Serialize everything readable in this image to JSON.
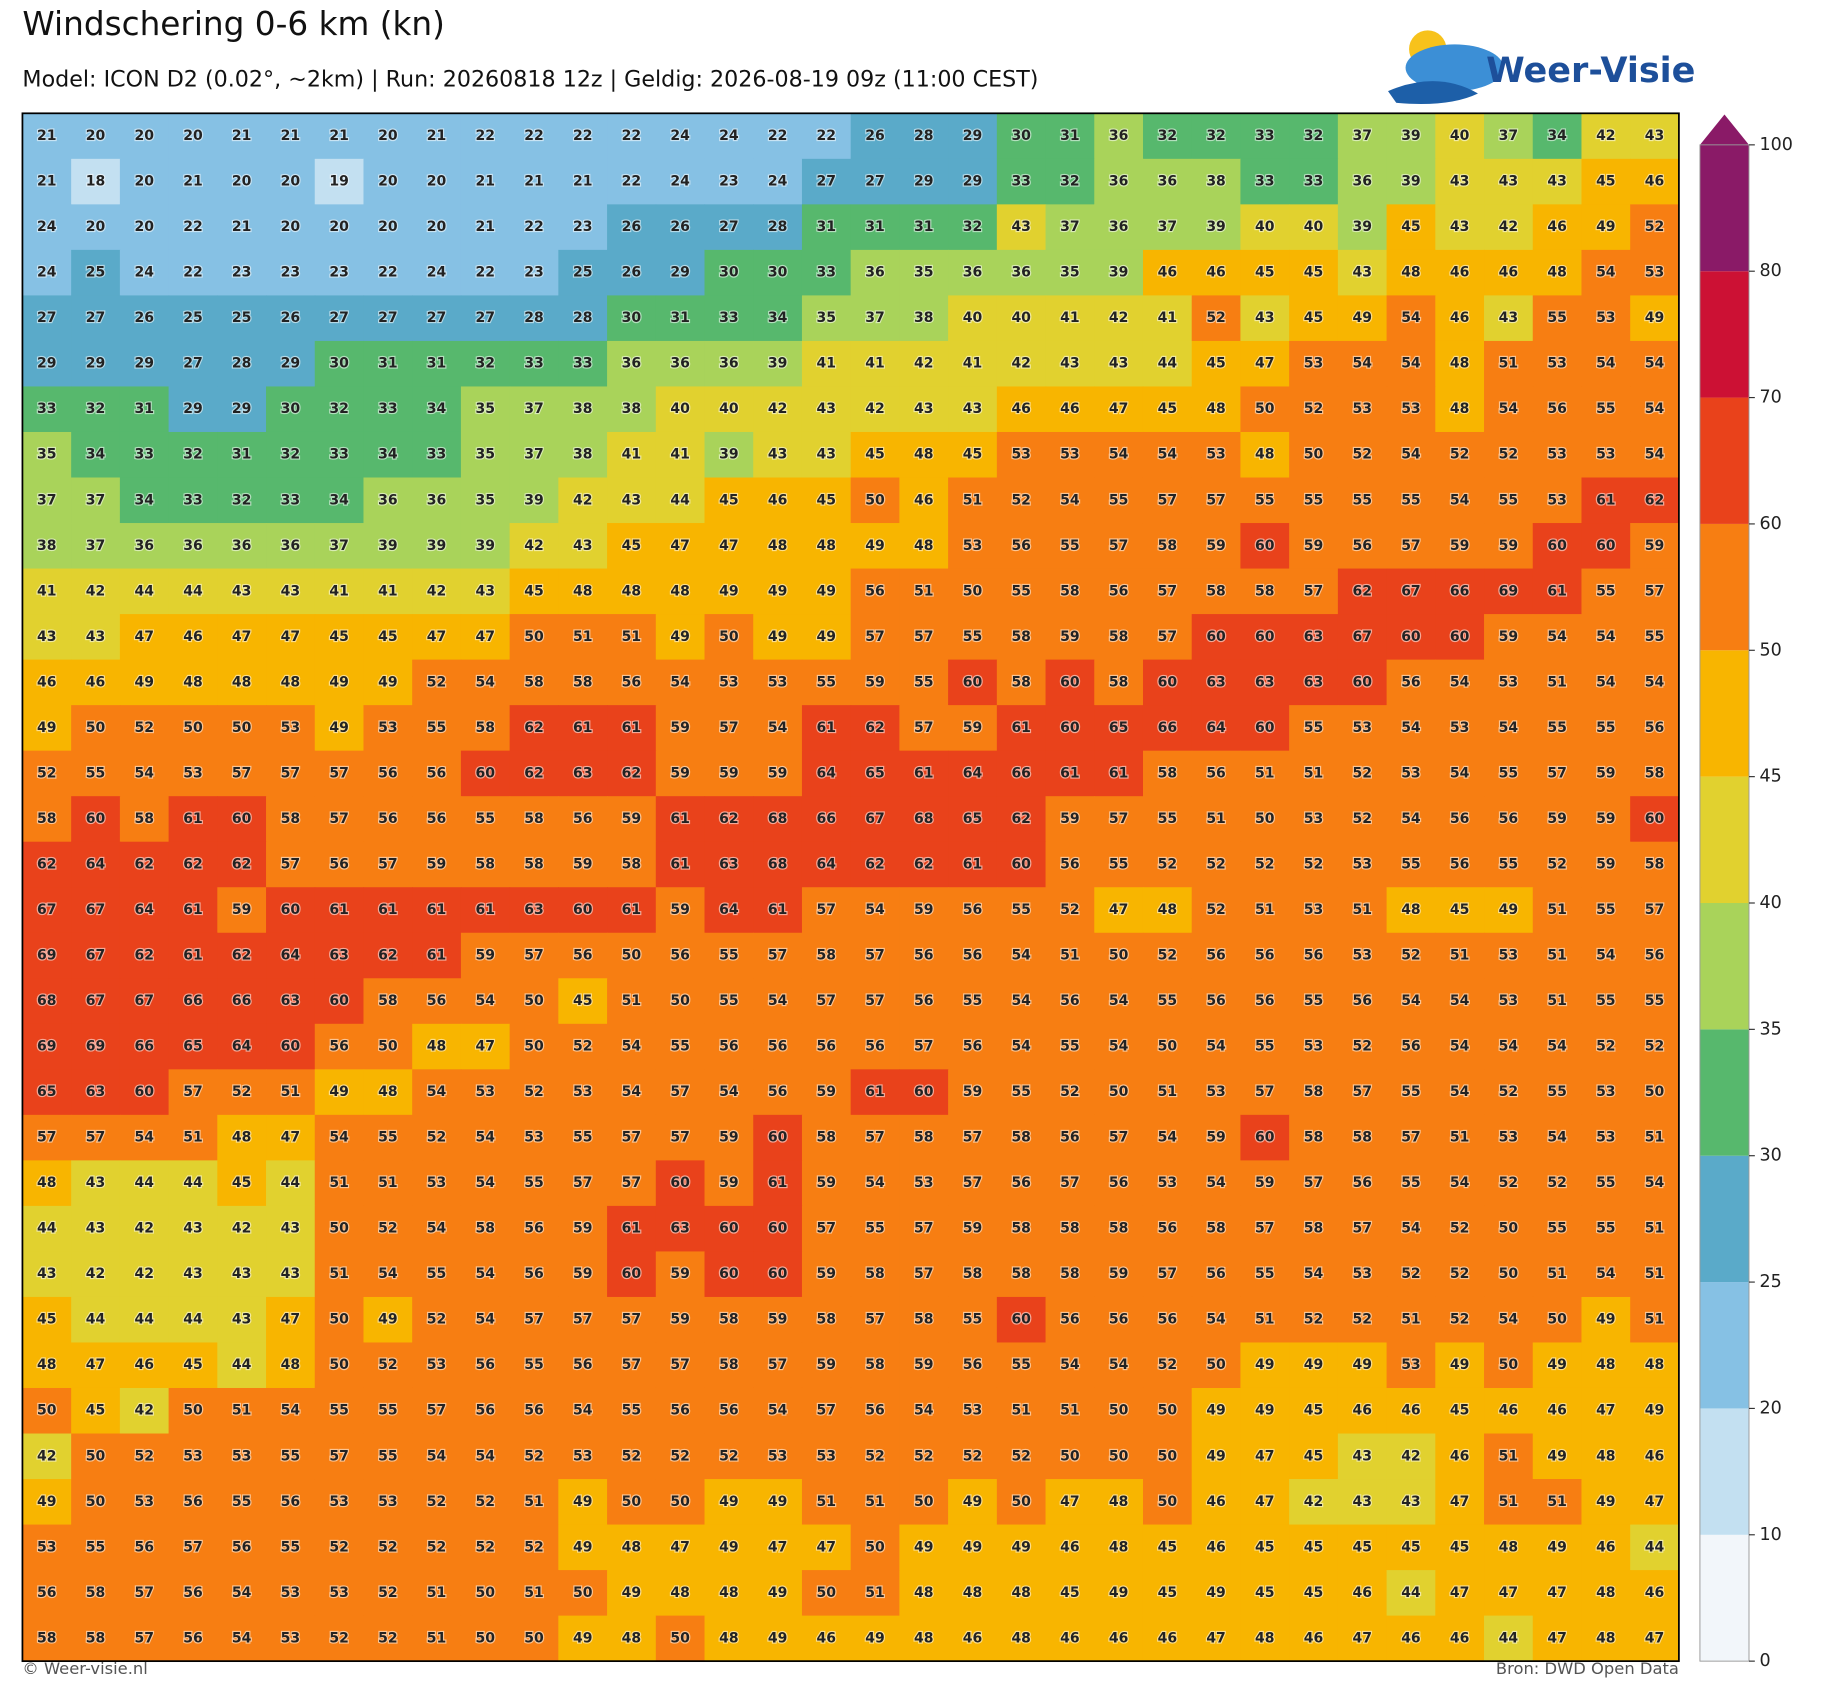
{
  "header": {
    "title": "Windschering 0-6 km (kn)",
    "subtitle": "Model: ICON D2 (0.02°, ~2km)  |  Run: 20260818 12z  |  Geldig: 2026-08-19 09z (11:00 CEST)",
    "logo": "Weer-Visie"
  },
  "chart_data": {
    "type": "heatmap",
    "values": [
      [
        21,
        20,
        20,
        20,
        21,
        21,
        21,
        20,
        21,
        22,
        22,
        22,
        22,
        24,
        24,
        22,
        22,
        26,
        28,
        29,
        30,
        31,
        36,
        32,
        32,
        33,
        32,
        37,
        39,
        40,
        37,
        34,
        42,
        43
      ],
      [
        21,
        18,
        20,
        21,
        20,
        20,
        19,
        20,
        20,
        21,
        21,
        21,
        22,
        24,
        23,
        24,
        27,
        27,
        29,
        29,
        33,
        32,
        36,
        36,
        38,
        33,
        33,
        36,
        39,
        43,
        43,
        43,
        45,
        46
      ],
      [
        24,
        20,
        20,
        22,
        21,
        20,
        20,
        20,
        20,
        21,
        22,
        23,
        26,
        26,
        27,
        28,
        31,
        31,
        31,
        32,
        43,
        37,
        36,
        37,
        39,
        40,
        40,
        39,
        45,
        43,
        42,
        46,
        49,
        52
      ],
      [
        24,
        25,
        24,
        22,
        23,
        23,
        23,
        22,
        24,
        22,
        23,
        25,
        26,
        29,
        30,
        30,
        33,
        36,
        35,
        36,
        36,
        35,
        39,
        46,
        46,
        45,
        45,
        43,
        48,
        46,
        46,
        48,
        54,
        53
      ],
      [
        27,
        27,
        26,
        25,
        25,
        26,
        27,
        27,
        27,
        27,
        28,
        28,
        30,
        31,
        33,
        34,
        35,
        37,
        38,
        40,
        40,
        41,
        42,
        41,
        52,
        43,
        45,
        49,
        54,
        46,
        43,
        55,
        53,
        49
      ],
      [
        29,
        29,
        29,
        27,
        28,
        29,
        30,
        31,
        31,
        32,
        33,
        33,
        36,
        36,
        36,
        39,
        41,
        41,
        42,
        41,
        42,
        43,
        43,
        44,
        45,
        47,
        53,
        54,
        54,
        48,
        51,
        53,
        54,
        54
      ],
      [
        33,
        32,
        31,
        29,
        29,
        30,
        32,
        33,
        34,
        35,
        37,
        38,
        38,
        40,
        40,
        42,
        43,
        42,
        43,
        43,
        46,
        46,
        47,
        45,
        48,
        50,
        52,
        53,
        53,
        48,
        54,
        56,
        55,
        54
      ],
      [
        35,
        34,
        33,
        32,
        31,
        32,
        33,
        34,
        33,
        35,
        37,
        38,
        41,
        41,
        39,
        43,
        43,
        45,
        48,
        45,
        53,
        53,
        54,
        54,
        53,
        48,
        50,
        52,
        54,
        52,
        52,
        53,
        53,
        54
      ],
      [
        37,
        37,
        34,
        33,
        32,
        33,
        34,
        36,
        36,
        35,
        39,
        42,
        43,
        44,
        45,
        46,
        45,
        50,
        46,
        51,
        52,
        54,
        55,
        57,
        57,
        55,
        55,
        55,
        55,
        54,
        55,
        53,
        61,
        62
      ],
      [
        38,
        37,
        36,
        36,
        36,
        36,
        37,
        39,
        39,
        39,
        42,
        43,
        45,
        47,
        47,
        48,
        48,
        49,
        48,
        53,
        56,
        55,
        57,
        58,
        59,
        60,
        59,
        56,
        57,
        59,
        59,
        60,
        60,
        59
      ],
      [
        41,
        42,
        44,
        44,
        43,
        43,
        41,
        41,
        42,
        43,
        45,
        48,
        48,
        48,
        49,
        49,
        49,
        56,
        51,
        50,
        55,
        58,
        56,
        57,
        58,
        58,
        57,
        62,
        67,
        66,
        69,
        61,
        55,
        57
      ],
      [
        43,
        43,
        47,
        46,
        47,
        47,
        45,
        45,
        47,
        47,
        50,
        51,
        51,
        49,
        50,
        49,
        49,
        57,
        57,
        55,
        58,
        59,
        58,
        57,
        60,
        60,
        63,
        67,
        60,
        60,
        59,
        54,
        54,
        55
      ],
      [
        46,
        46,
        49,
        48,
        48,
        48,
        49,
        49,
        52,
        54,
        58,
        58,
        56,
        54,
        53,
        53,
        55,
        59,
        55,
        60,
        58,
        60,
        58,
        60,
        63,
        63,
        63,
        60,
        56,
        54,
        53,
        51,
        54,
        54
      ],
      [
        49,
        50,
        52,
        50,
        50,
        53,
        49,
        53,
        55,
        58,
        62,
        61,
        61,
        59,
        57,
        54,
        61,
        62,
        57,
        59,
        61,
        60,
        65,
        66,
        64,
        60,
        55,
        53,
        54,
        53,
        54,
        55,
        55,
        56
      ],
      [
        52,
        55,
        54,
        53,
        57,
        57,
        57,
        56,
        56,
        60,
        62,
        63,
        62,
        59,
        59,
        59,
        64,
        65,
        61,
        64,
        66,
        61,
        61,
        58,
        56,
        51,
        51,
        52,
        53,
        54,
        55,
        57,
        59,
        58
      ],
      [
        58,
        60,
        58,
        61,
        60,
        58,
        57,
        56,
        56,
        55,
        58,
        56,
        59,
        61,
        62,
        68,
        66,
        67,
        68,
        65,
        62,
        59,
        57,
        55,
        51,
        50,
        53,
        52,
        54,
        56,
        56,
        59,
        59,
        60
      ],
      [
        62,
        64,
        62,
        62,
        62,
        57,
        56,
        57,
        59,
        58,
        58,
        59,
        58,
        61,
        63,
        68,
        64,
        62,
        62,
        61,
        60,
        56,
        55,
        52,
        52,
        52,
        52,
        53,
        55,
        56,
        55,
        52,
        59,
        58
      ],
      [
        67,
        67,
        64,
        61,
        59,
        60,
        61,
        61,
        61,
        61,
        63,
        60,
        61,
        59,
        64,
        61,
        57,
        54,
        59,
        56,
        55,
        52,
        47,
        48,
        52,
        51,
        53,
        51,
        48,
        45,
        49,
        51,
        55,
        57
      ],
      [
        69,
        67,
        62,
        61,
        62,
        64,
        63,
        62,
        61,
        59,
        57,
        56,
        50,
        56,
        55,
        57,
        58,
        57,
        56,
        56,
        54,
        51,
        50,
        52,
        56,
        56,
        56,
        53,
        52,
        51,
        53,
        51,
        54,
        56
      ],
      [
        68,
        67,
        67,
        66,
        66,
        63,
        60,
        58,
        56,
        54,
        50,
        45,
        51,
        50,
        55,
        54,
        57,
        57,
        56,
        55,
        54,
        56,
        54,
        55,
        56,
        56,
        55,
        56,
        54,
        54,
        53,
        51,
        55,
        55
      ],
      [
        69,
        69,
        66,
        65,
        64,
        60,
        56,
        50,
        48,
        47,
        50,
        52,
        54,
        55,
        56,
        56,
        56,
        56,
        57,
        56,
        54,
        55,
        54,
        50,
        54,
        55,
        53,
        52,
        56,
        54,
        54,
        54,
        52,
        52
      ],
      [
        65,
        63,
        60,
        57,
        52,
        51,
        49,
        48,
        54,
        53,
        52,
        53,
        54,
        57,
        54,
        56,
        59,
        61,
        60,
        59,
        55,
        52,
        50,
        51,
        53,
        57,
        58,
        57,
        55,
        54,
        52,
        55,
        53,
        50
      ],
      [
        57,
        57,
        54,
        51,
        48,
        47,
        54,
        55,
        52,
        54,
        53,
        55,
        57,
        57,
        59,
        60,
        58,
        57,
        58,
        57,
        58,
        56,
        57,
        54,
        59,
        60,
        58,
        58,
        57,
        51,
        53,
        54,
        53,
        51
      ],
      [
        48,
        43,
        44,
        44,
        45,
        44,
        51,
        51,
        53,
        54,
        55,
        57,
        57,
        60,
        59,
        61,
        59,
        54,
        53,
        57,
        56,
        57,
        56,
        53,
        54,
        59,
        57,
        56,
        55,
        54,
        52,
        52,
        55,
        54
      ],
      [
        44,
        43,
        42,
        43,
        42,
        43,
        50,
        52,
        54,
        58,
        56,
        59,
        61,
        63,
        60,
        60,
        57,
        55,
        57,
        59,
        58,
        58,
        58,
        56,
        58,
        57,
        58,
        57,
        54,
        52,
        50,
        55,
        55,
        51
      ],
      [
        43,
        42,
        42,
        43,
        43,
        43,
        51,
        54,
        55,
        54,
        56,
        59,
        60,
        59,
        60,
        60,
        59,
        58,
        57,
        58,
        58,
        58,
        59,
        57,
        56,
        55,
        54,
        53,
        52,
        52,
        50,
        51,
        54,
        51
      ],
      [
        45,
        44,
        44,
        44,
        43,
        47,
        50,
        49,
        52,
        54,
        57,
        57,
        57,
        59,
        58,
        59,
        58,
        57,
        58,
        55,
        60,
        56,
        56,
        56,
        54,
        51,
        52,
        52,
        51,
        52,
        54,
        50,
        49,
        51
      ],
      [
        48,
        47,
        46,
        45,
        44,
        48,
        50,
        52,
        53,
        56,
        55,
        56,
        57,
        57,
        58,
        57,
        59,
        58,
        59,
        56,
        55,
        54,
        54,
        52,
        50,
        49,
        49,
        49,
        53,
        49,
        50,
        49,
        48,
        48
      ],
      [
        50,
        45,
        42,
        50,
        51,
        54,
        55,
        55,
        57,
        56,
        56,
        54,
        55,
        56,
        56,
        54,
        57,
        56,
        54,
        53,
        51,
        51,
        50,
        50,
        49,
        49,
        45,
        46,
        46,
        45,
        46,
        46,
        47,
        49
      ],
      [
        42,
        50,
        52,
        53,
        53,
        55,
        57,
        55,
        54,
        54,
        52,
        53,
        52,
        52,
        52,
        53,
        53,
        52,
        52,
        52,
        52,
        50,
        50,
        50,
        49,
        47,
        45,
        43,
        42,
        46,
        51,
        49,
        48,
        46
      ],
      [
        49,
        50,
        53,
        56,
        55,
        56,
        53,
        53,
        52,
        52,
        51,
        49,
        50,
        50,
        49,
        49,
        51,
        51,
        50,
        49,
        50,
        47,
        48,
        50,
        46,
        47,
        42,
        43,
        43,
        47,
        51,
        51,
        49,
        47
      ],
      [
        53,
        55,
        56,
        57,
        56,
        55,
        52,
        52,
        52,
        52,
        52,
        49,
        48,
        47,
        49,
        47,
        47,
        50,
        49,
        49,
        49,
        46,
        48,
        45,
        46,
        45,
        45,
        45,
        45,
        45,
        48,
        49,
        46,
        44
      ],
      [
        56,
        58,
        57,
        56,
        54,
        53,
        53,
        52,
        51,
        50,
        51,
        50,
        49,
        48,
        48,
        49,
        50,
        51,
        48,
        48,
        48,
        45,
        49,
        45,
        49,
        45,
        45,
        46,
        44,
        47,
        47,
        47,
        48,
        46
      ],
      [
        58,
        58,
        57,
        56,
        54,
        53,
        52,
        52,
        51,
        50,
        50,
        49,
        48,
        50,
        48,
        49,
        46,
        49,
        48,
        46,
        48,
        46,
        46,
        46,
        47,
        48,
        46,
        47,
        46,
        46,
        44,
        47,
        48,
        47
      ]
    ],
    "colorbar": {
      "ticks": [
        0,
        10,
        20,
        25,
        30,
        35,
        40,
        45,
        50,
        60,
        70,
        80,
        100
      ],
      "colors": [
        "#f2f6fa",
        "#c3e0f1",
        "#86c1e4",
        "#5aaac9",
        "#57b86d",
        "#a9d35a",
        "#e1d12f",
        "#f8b500",
        "#f77e12",
        "#e9421b",
        "#cc1134",
        "#8a1a67"
      ]
    }
  },
  "footer": {
    "left": "© Weer-visie.nl",
    "right": "Bron: DWD Open Data"
  }
}
